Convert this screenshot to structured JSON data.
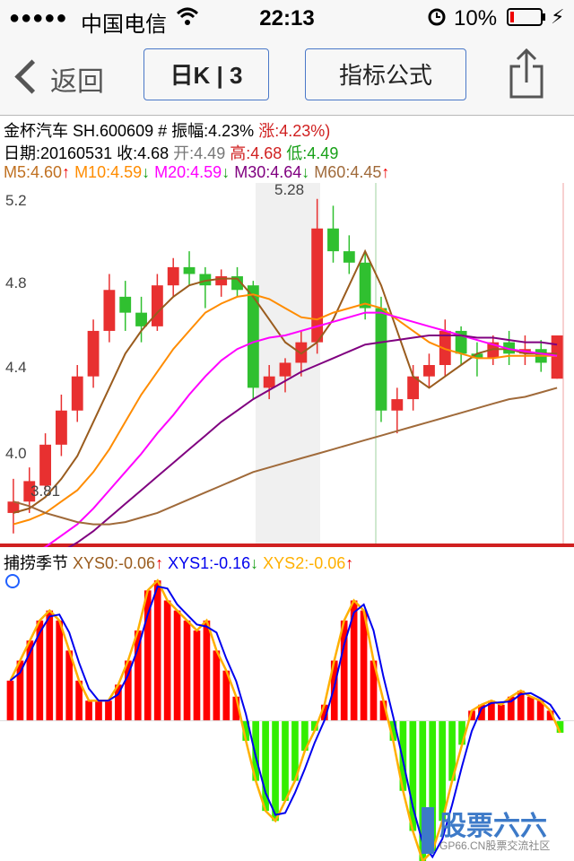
{
  "status": {
    "carrier": "中国电信",
    "time": "22:13",
    "battery": "10%"
  },
  "nav": {
    "back_label": "返回",
    "period_label": "日K | 3",
    "formula_label": "指标公式"
  },
  "stock": {
    "name": "金杯汽车",
    "code": "SH.600609",
    "hash": "#",
    "amplitude": "振幅:4.23%",
    "change": "涨:4.23%)",
    "date": "日期:20160531",
    "close": "收:4.68",
    "open": "开:4.49",
    "high": "高:4.68",
    "low": "低:4.49"
  },
  "ma": {
    "m5": "M5:4.60",
    "m10": "M10:4.59",
    "m20": "M20:4.59",
    "m30": "M30:4.64",
    "m60": "M60:4.45",
    "colors": {
      "m5": "#9a5c1e",
      "m10": "#ff8c00",
      "m20": "#ff00ff",
      "m30": "#800080",
      "m60": "#a06a3a"
    }
  },
  "price_axis": {
    "ticks": [
      "5.2",
      "4.8",
      "4.4",
      "4.0"
    ],
    "high_label": "5.28",
    "low_label": "3.81"
  },
  "indicator": {
    "name": "捕捞季节",
    "xys0": "XYS0:-0.06",
    "xys1": "XYS1:-0.16",
    "xys2": "XYS2:-0.06",
    "colors": {
      "xys0": "#9a5c1e",
      "xys1": "#0000ee",
      "xys2": "#ffb000"
    }
  },
  "watermark": {
    "brand": "股票六六",
    "sub": "GP66.CN股票交流社区"
  },
  "chart_data": {
    "type": "candlestick",
    "title": "金杯汽车 SH.600609 日K",
    "ylim": [
      3.75,
      5.35
    ],
    "candles": [
      {
        "o": 3.9,
        "h": 4.05,
        "l": 3.81,
        "c": 3.95
      },
      {
        "o": 3.95,
        "h": 4.1,
        "l": 3.9,
        "c": 4.04
      },
      {
        "o": 4.02,
        "h": 4.25,
        "l": 4.0,
        "c": 4.2
      },
      {
        "o": 4.2,
        "h": 4.42,
        "l": 4.15,
        "c": 4.35
      },
      {
        "o": 4.35,
        "h": 4.55,
        "l": 4.3,
        "c": 4.5
      },
      {
        "o": 4.5,
        "h": 4.75,
        "l": 4.45,
        "c": 4.7
      },
      {
        "o": 4.7,
        "h": 4.95,
        "l": 4.65,
        "c": 4.88
      },
      {
        "o": 4.85,
        "h": 4.92,
        "l": 4.7,
        "c": 4.78
      },
      {
        "o": 4.78,
        "h": 4.85,
        "l": 4.65,
        "c": 4.72
      },
      {
        "o": 4.72,
        "h": 4.95,
        "l": 4.7,
        "c": 4.9
      },
      {
        "o": 4.9,
        "h": 5.02,
        "l": 4.85,
        "c": 4.98
      },
      {
        "o": 4.98,
        "h": 5.05,
        "l": 4.9,
        "c": 4.95
      },
      {
        "o": 4.95,
        "h": 4.98,
        "l": 4.8,
        "c": 4.9
      },
      {
        "o": 4.9,
        "h": 4.97,
        "l": 4.85,
        "c": 4.94
      },
      {
        "o": 4.94,
        "h": 4.98,
        "l": 4.85,
        "c": 4.88
      },
      {
        "o": 4.9,
        "h": 4.92,
        "l": 4.4,
        "c": 4.45
      },
      {
        "o": 4.45,
        "h": 4.55,
        "l": 4.4,
        "c": 4.5
      },
      {
        "o": 4.5,
        "h": 4.58,
        "l": 4.43,
        "c": 4.56
      },
      {
        "o": 4.56,
        "h": 4.7,
        "l": 4.5,
        "c": 4.65
      },
      {
        "o": 4.65,
        "h": 5.28,
        "l": 4.6,
        "c": 5.15
      },
      {
        "o": 5.15,
        "h": 5.25,
        "l": 5.0,
        "c": 5.05
      },
      {
        "o": 5.05,
        "h": 5.12,
        "l": 4.95,
        "c": 5.0
      },
      {
        "o": 5.0,
        "h": 5.05,
        "l": 4.75,
        "c": 4.8
      },
      {
        "o": 4.8,
        "h": 4.85,
        "l": 4.3,
        "c": 4.35
      },
      {
        "o": 4.35,
        "h": 4.45,
        "l": 4.25,
        "c": 4.4
      },
      {
        "o": 4.4,
        "h": 4.55,
        "l": 4.35,
        "c": 4.5
      },
      {
        "o": 4.5,
        "h": 4.6,
        "l": 4.45,
        "c": 4.55
      },
      {
        "o": 4.55,
        "h": 4.75,
        "l": 4.5,
        "c": 4.7
      },
      {
        "o": 4.7,
        "h": 4.72,
        "l": 4.55,
        "c": 4.6
      },
      {
        "o": 4.6,
        "h": 4.65,
        "l": 4.5,
        "c": 4.58
      },
      {
        "o": 4.58,
        "h": 4.68,
        "l": 4.55,
        "c": 4.65
      },
      {
        "o": 4.65,
        "h": 4.7,
        "l": 4.55,
        "c": 4.6
      },
      {
        "o": 4.6,
        "h": 4.68,
        "l": 4.55,
        "c": 4.62
      },
      {
        "o": 4.62,
        "h": 4.66,
        "l": 4.52,
        "c": 4.56
      },
      {
        "o": 4.49,
        "h": 4.68,
        "l": 4.49,
        "c": 4.68
      }
    ],
    "ma_series": [
      {
        "name": "M5",
        "values": [
          3.9,
          3.92,
          3.97,
          4.05,
          4.15,
          4.3,
          4.45,
          4.6,
          4.7,
          4.78,
          4.85,
          4.9,
          4.92,
          4.93,
          4.93,
          4.85,
          4.75,
          4.65,
          4.6,
          4.65,
          4.75,
          4.9,
          5.05,
          4.9,
          4.7,
          4.5,
          4.45,
          4.5,
          4.55,
          4.6,
          4.62,
          4.62,
          4.6,
          4.6,
          4.6
        ]
      },
      {
        "name": "M10",
        "values": [
          3.85,
          3.87,
          3.9,
          3.95,
          4.0,
          4.08,
          4.18,
          4.3,
          4.42,
          4.52,
          4.62,
          4.7,
          4.78,
          4.82,
          4.85,
          4.86,
          4.84,
          4.8,
          4.76,
          4.75,
          4.78,
          4.8,
          4.82,
          4.8,
          4.75,
          4.7,
          4.65,
          4.62,
          4.6,
          4.58,
          4.58,
          4.59,
          4.59,
          4.59,
          4.59
        ]
      },
      {
        "name": "M20",
        "values": [
          3.7,
          3.72,
          3.75,
          3.8,
          3.85,
          3.92,
          4.0,
          4.08,
          4.16,
          4.25,
          4.33,
          4.42,
          4.5,
          4.57,
          4.62,
          4.65,
          4.67,
          4.68,
          4.7,
          4.72,
          4.74,
          4.76,
          4.78,
          4.78,
          4.76,
          4.74,
          4.72,
          4.7,
          4.68,
          4.66,
          4.64,
          4.62,
          4.61,
          4.6,
          4.59
        ]
      },
      {
        "name": "M30",
        "values": [
          3.65,
          3.67,
          3.7,
          3.73,
          3.77,
          3.82,
          3.88,
          3.94,
          4.0,
          4.06,
          4.12,
          4.18,
          4.24,
          4.3,
          4.35,
          4.4,
          4.44,
          4.48,
          4.52,
          4.55,
          4.58,
          4.61,
          4.64,
          4.65,
          4.66,
          4.67,
          4.68,
          4.68,
          4.68,
          4.67,
          4.67,
          4.66,
          4.65,
          4.65,
          4.64
        ]
      },
      {
        "name": "M60",
        "values": [
          3.95,
          3.93,
          3.9,
          3.88,
          3.86,
          3.85,
          3.85,
          3.86,
          3.88,
          3.9,
          3.93,
          3.96,
          3.99,
          4.02,
          4.05,
          4.08,
          4.1,
          4.12,
          4.14,
          4.16,
          4.18,
          4.2,
          4.22,
          4.24,
          4.26,
          4.28,
          4.3,
          4.32,
          4.34,
          4.36,
          4.38,
          4.4,
          4.41,
          4.43,
          4.45
        ]
      }
    ],
    "indicator_ylim": [
      -0.7,
      0.75
    ],
    "bars": [
      0.2,
      0.3,
      0.4,
      0.5,
      0.55,
      0.5,
      0.35,
      0.2,
      0.1,
      0.1,
      0.1,
      0.18,
      0.3,
      0.45,
      0.65,
      0.7,
      0.6,
      0.55,
      0.5,
      0.45,
      0.5,
      0.35,
      0.25,
      0.12,
      -0.1,
      -0.3,
      -0.45,
      -0.5,
      -0.4,
      -0.3,
      -0.15,
      -0.05,
      0.08,
      0.3,
      0.5,
      0.6,
      0.55,
      0.3,
      0.1,
      -0.1,
      -0.35,
      -0.55,
      -0.7,
      -0.65,
      -0.5,
      -0.3,
      -0.12,
      0.05,
      0.08,
      0.1,
      0.08,
      0.12,
      0.15,
      0.12,
      0.1,
      0.05,
      -0.06
    ]
  }
}
